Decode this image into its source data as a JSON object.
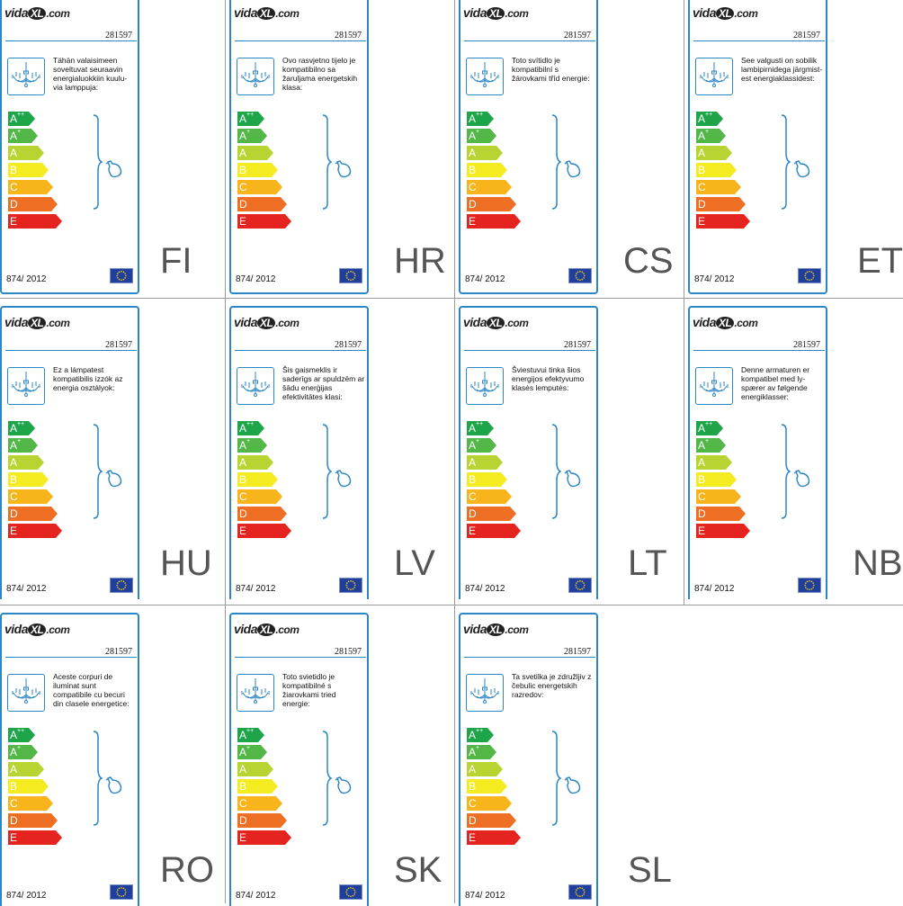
{
  "product_number": "281597",
  "regulation": "874/ 2012",
  "brand": {
    "pre": "vida",
    "mark": "XL",
    "post": ".com"
  },
  "classes": [
    {
      "letter": "A",
      "sup": "++",
      "color": "#1ea54a"
    },
    {
      "letter": "A",
      "sup": "+",
      "color": "#52b747"
    },
    {
      "letter": "A",
      "sup": "",
      "color": "#b7d433"
    },
    {
      "letter": "B",
      "sup": "",
      "color": "#f4ec21"
    },
    {
      "letter": "C",
      "sup": "",
      "color": "#f8b51b"
    },
    {
      "letter": "D",
      "sup": "",
      "color": "#ee6f23"
    },
    {
      "letter": "E",
      "sup": "",
      "color": "#e5231f"
    }
  ],
  "labels": [
    {
      "lang": "FI",
      "text": "Tähän valaisimeen soveltuvat seuraavin energialuokkiin kuulu-via lamppuja:"
    },
    {
      "lang": "HR",
      "text": "Ovo rasvjetno tijelo je kompatibilno sa žaruljama energetskih klasa:"
    },
    {
      "lang": "CS",
      "text": "Toto svítidlo je kompatibilní s žárovkami tříd energie:"
    },
    {
      "lang": "ET",
      "text": "See valgusti on sobilik lambipirnidega järgmist-est energiaklassidest:"
    },
    {
      "lang": "HU",
      "text": "Ez a lámpatest kompatibilis izzók az energia osztályok:"
    },
    {
      "lang": "LV",
      "text": "Šis gaismeklis ir saderīgs ar spuldzēm ar šādu enerģijas efektivitātes klasi:"
    },
    {
      "lang": "LT",
      "text": "Šviestuvui tinka šios energijos efektyvumo klasės lemputės:"
    },
    {
      "lang": "NB",
      "text": "Denne armaturen er kompatibel med ly-spærer av følgende energiklasser:"
    },
    {
      "lang": "RO",
      "text": "Aceste corpuri de iluminat sunt compatibile cu becuri din clasele energetice:"
    },
    {
      "lang": "SK",
      "text": "Toto svietidlo je kompatibilné s žiarovkami tried energie:"
    },
    {
      "lang": "SL",
      "text": "Ta svetilka je združljiv z čebulic energetskih razredov:"
    }
  ],
  "colors": {
    "frame": "#2b86c5",
    "eu_blue": "#1f3f9b",
    "eu_star": "#f7d117",
    "lang_text": "#555555",
    "grid": "#9a9a9a"
  }
}
